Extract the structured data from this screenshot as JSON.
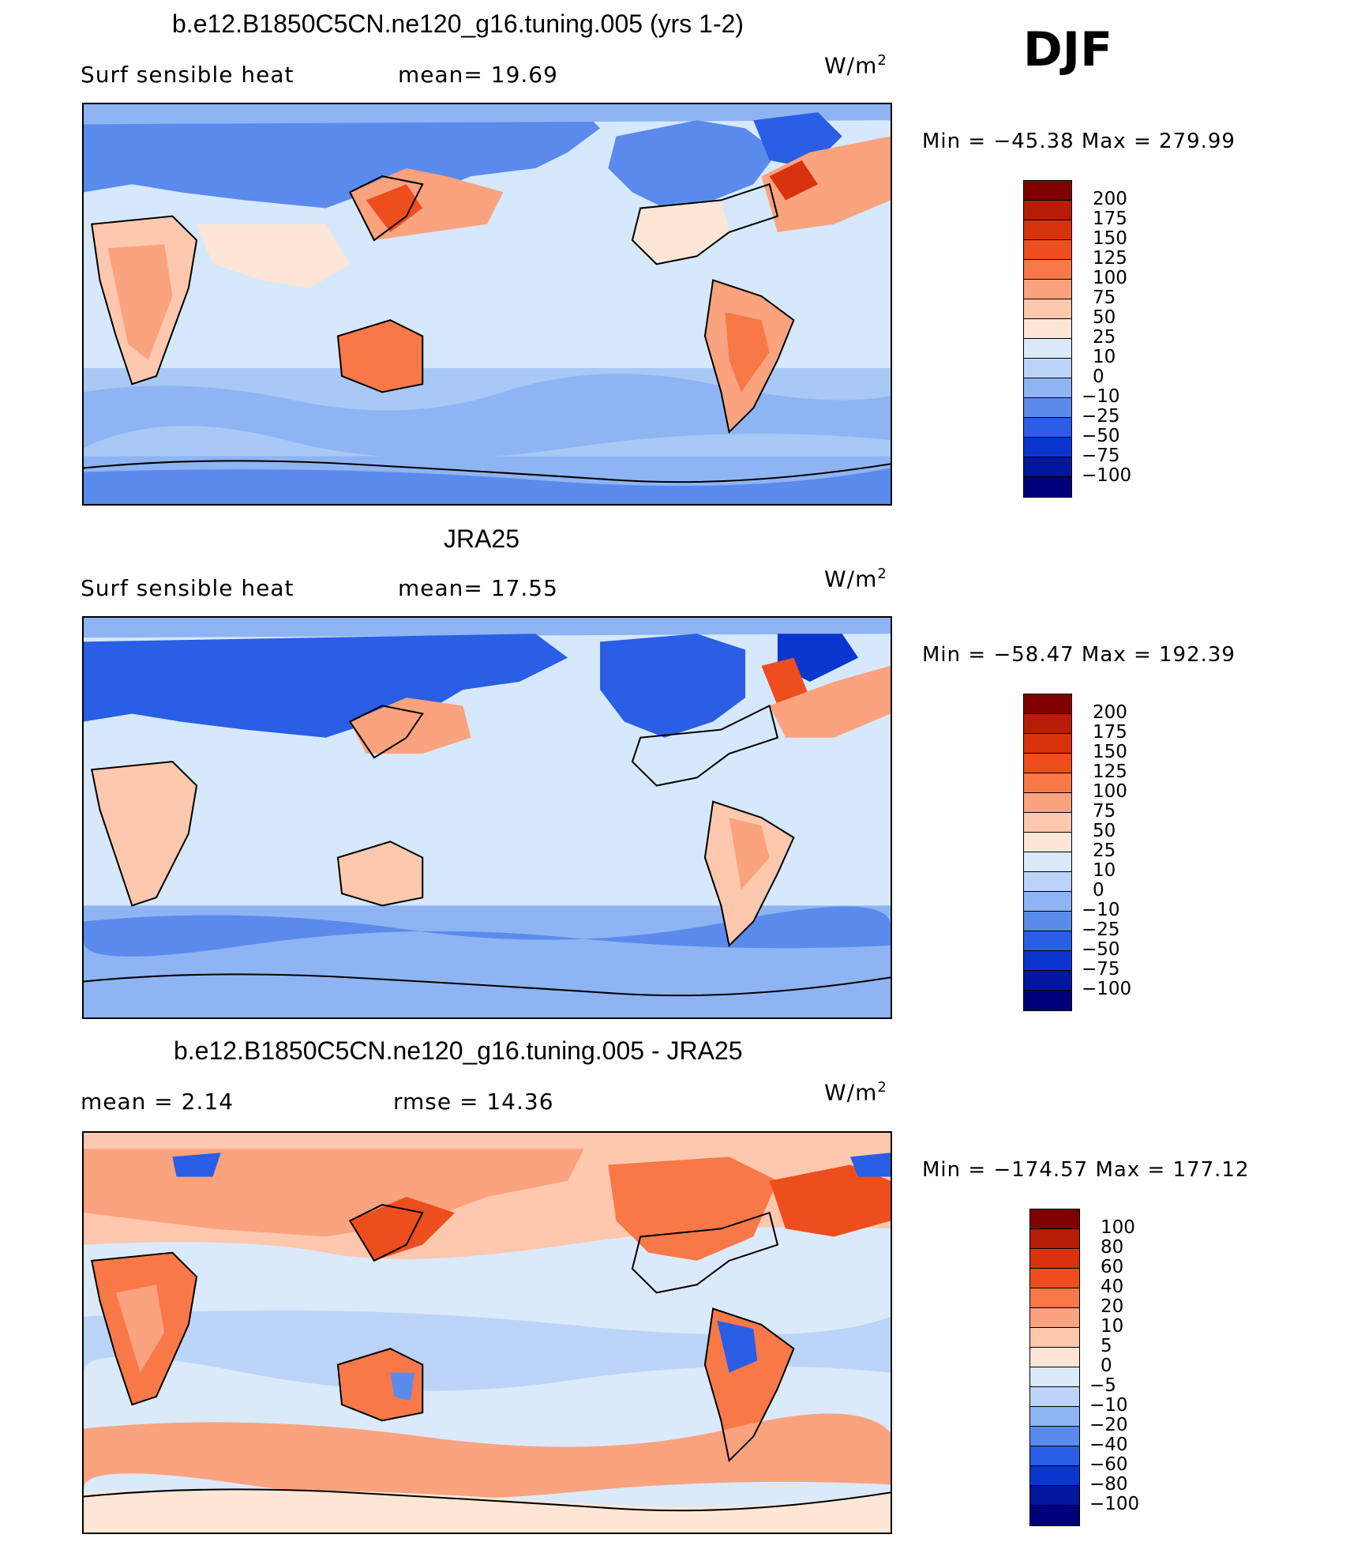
{
  "season": "DJF",
  "colors": {
    "land_warm": "#f6b18f",
    "ocean_pale": "#d6e8fb",
    "ocean_mid": "#a8c8f5",
    "cold_blue": "#3d73e8",
    "deep_blue": "#1545d8",
    "hot_red": "#e03a10",
    "coast_line": "#000000"
  },
  "panels": [
    {
      "id": "model",
      "title": "b.e12.B1850C5CN.ne120_g16.tuning.005 (yrs 1-2)",
      "left_label": "Surf  sensible  heat",
      "center_label": "mean=   19.69",
      "units_base": "W/m",
      "units_exp": "2",
      "minmax": "Min  =  −45.38  Max  =  279.99",
      "colorbar_labels": [
        "200",
        "175",
        "150",
        "125",
        "100",
        "75",
        "50",
        "25",
        "10",
        "0",
        "−10",
        "−25",
        "−50",
        "−75",
        "−100"
      ],
      "colorbar_colors": [
        "#7f0000",
        "#b51d04",
        "#d8330c",
        "#ee4e1d",
        "#f97848",
        "#fba27f",
        "#fdc8ae",
        "#fde6d6",
        "#dbeafb",
        "#bcd4f8",
        "#8fb4f3",
        "#5a8bec",
        "#2a5ee4",
        "#0a36cf",
        "#03169e",
        "#00007a"
      ]
    },
    {
      "id": "obs",
      "title": "JRA25",
      "left_label": "Surf  sensible  heat",
      "center_label": "mean=   17.55",
      "units_base": "W/m",
      "units_exp": "2",
      "minmax": "Min  =  −58.47  Max  =  192.39",
      "colorbar_labels": [
        "200",
        "175",
        "150",
        "125",
        "100",
        "75",
        "50",
        "25",
        "10",
        "0",
        "−10",
        "−25",
        "−50",
        "−75",
        "−100"
      ],
      "colorbar_colors": [
        "#7f0000",
        "#b51d04",
        "#d8330c",
        "#ee4e1d",
        "#f97848",
        "#fba27f",
        "#fdc8ae",
        "#fde6d6",
        "#dbeafb",
        "#bcd4f8",
        "#8fb4f3",
        "#5a8bec",
        "#2a5ee4",
        "#0a36cf",
        "#03169e",
        "#00007a"
      ]
    },
    {
      "id": "diff",
      "title": "b.e12.B1850C5CN.ne120_g16.tuning.005 - JRA25",
      "left_label": "mean  =     2.14",
      "center_label": "rmse  =    14.36",
      "units_base": "W/m",
      "units_exp": "2",
      "minmax": "Min  =  −174.57  Max  =  177.12",
      "colorbar_labels": [
        "100",
        "80",
        "60",
        "40",
        "20",
        "10",
        "5",
        "0",
        "−5",
        "−10",
        "−20",
        "−40",
        "−60",
        "−80",
        "−100"
      ],
      "colorbar_colors": [
        "#7f0000",
        "#b51d04",
        "#d8330c",
        "#ee4e1d",
        "#f97848",
        "#fba27f",
        "#fdc8ae",
        "#fde6d6",
        "#dbeafb",
        "#bcd4f8",
        "#8fb4f3",
        "#5a8bec",
        "#2a5ee4",
        "#0a36cf",
        "#03169e",
        "#00007a"
      ]
    }
  ]
}
